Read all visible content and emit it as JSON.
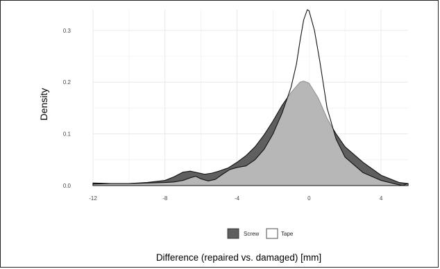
{
  "chart_data": {
    "type": "area",
    "title": "",
    "xlabel": "Difference (repaired vs. damaged) [mm]",
    "ylabel": "Density",
    "xlim": [
      -12,
      5.5
    ],
    "ylim": [
      0,
      0.34
    ],
    "x_ticks": [
      -12,
      -8,
      -4,
      0,
      4
    ],
    "y_ticks": [
      0.0,
      0.1,
      0.2,
      0.3
    ],
    "x_tick_labels": [
      "-12",
      "-8",
      "-4",
      "0",
      "4"
    ],
    "y_tick_labels": [
      "0.0",
      "0.1",
      "0.2",
      "0.3"
    ],
    "grid": true,
    "legend_position": "bottom",
    "series": [
      {
        "name": "Screw",
        "color": "#5f5f5f",
        "x": [
          -12,
          -11,
          -10,
          -9,
          -8,
          -7.5,
          -7,
          -6.6,
          -6.2,
          -5.8,
          -5.4,
          -5,
          -4.5,
          -4,
          -3.5,
          -3,
          -2.5,
          -2,
          -1.5,
          -1,
          -0.5,
          -0.3,
          0,
          0.5,
          1,
          1.5,
          2,
          3,
          4,
          5,
          5.5
        ],
        "y": [
          0.005,
          0.004,
          0.004,
          0.006,
          0.01,
          0.017,
          0.026,
          0.028,
          0.025,
          0.022,
          0.024,
          0.028,
          0.034,
          0.045,
          0.058,
          0.075,
          0.098,
          0.125,
          0.155,
          0.18,
          0.2,
          0.202,
          0.198,
          0.17,
          0.13,
          0.1,
          0.075,
          0.045,
          0.02,
          0.006,
          0.004
        ]
      },
      {
        "name": "Tape",
        "color": "#ffffff",
        "x": [
          -12,
          -11,
          -10,
          -9,
          -8,
          -7.5,
          -7,
          -6.6,
          -6.3,
          -6,
          -5.6,
          -5.2,
          -4.8,
          -4.4,
          -4,
          -3.5,
          -3,
          -2.5,
          -2,
          -1.5,
          -1,
          -0.7,
          -0.5,
          -0.3,
          -0.1,
          0,
          0.3,
          0.6,
          1,
          1.5,
          2,
          3,
          4,
          4.8,
          5.2,
          5.5
        ],
        "y": [
          0.003,
          0.004,
          0.004,
          0.005,
          0.006,
          0.007,
          0.01,
          0.015,
          0.018,
          0.013,
          0.009,
          0.012,
          0.022,
          0.031,
          0.035,
          0.038,
          0.05,
          0.07,
          0.1,
          0.14,
          0.19,
          0.235,
          0.28,
          0.32,
          0.34,
          0.338,
          0.3,
          0.24,
          0.15,
          0.09,
          0.055,
          0.025,
          0.01,
          0.003,
          0.0,
          0.004
        ]
      }
    ]
  }
}
